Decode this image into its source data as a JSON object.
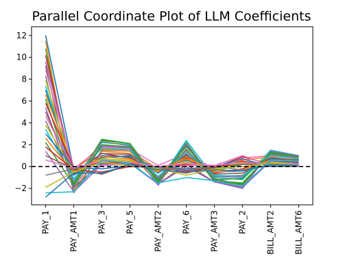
{
  "chart_data": {
    "type": "line",
    "title": "Parallel Coordinate Plot of LLM Coefficients",
    "xlabel": "",
    "ylabel": "",
    "categories": [
      "PAY_1",
      "PAY_AMT1",
      "PAY_3",
      "PAY_5",
      "PAY_AMT2",
      "PAY_6",
      "PAY_AMT3",
      "PAY_2",
      "BILL_AMT2",
      "BILL_AMT6"
    ],
    "ylim": [
      -3.5,
      12.8
    ],
    "yticks": [
      -2,
      0,
      2,
      4,
      6,
      8,
      10,
      12
    ],
    "reference_line": {
      "y": 0,
      "style": "dashed",
      "color": "#000000"
    },
    "grid": false,
    "legend": "none",
    "series": [
      {
        "values": [
          12.0,
          -0.3,
          0.8,
          1.0,
          -0.2,
          0.6,
          -0.4,
          0.2,
          0.5,
          0.3
        ]
      },
      {
        "values": [
          11.5,
          -2.2,
          1.4,
          1.2,
          -1.5,
          1.4,
          -1.2,
          -1.8,
          1.4,
          0.9
        ]
      },
      {
        "values": [
          10.8,
          -1.8,
          2.4,
          2.1,
          -1.4,
          2.2,
          -1.3,
          -1.5,
          1.2,
          1.0
        ]
      },
      {
        "values": [
          10.2,
          -0.6,
          1.2,
          0.8,
          -0.4,
          0.8,
          -0.6,
          -0.2,
          0.8,
          0.5
        ]
      },
      {
        "values": [
          9.6,
          -0.4,
          2.0,
          1.8,
          -1.0,
          1.8,
          -0.9,
          -1.0,
          1.1,
          0.8
        ]
      },
      {
        "values": [
          9.2,
          -1.9,
          0.3,
          0.4,
          -1.6,
          0.2,
          -1.4,
          -1.9,
          0.6,
          0.4
        ]
      },
      {
        "values": [
          8.8,
          -0.2,
          1.8,
          1.6,
          0.1,
          1.2,
          -0.2,
          0.8,
          1.0,
          0.7
        ]
      },
      {
        "values": [
          8.3,
          -2.4,
          1.5,
          1.4,
          -1.2,
          2.0,
          -1.1,
          -1.7,
          1.3,
          1.0
        ]
      },
      {
        "values": [
          7.9,
          -0.5,
          0.6,
          0.5,
          -0.3,
          0.4,
          -0.3,
          0.4,
          0.3,
          0.2
        ]
      },
      {
        "values": [
          7.4,
          -1.2,
          2.2,
          2.0,
          -1.5,
          2.4,
          -1.0,
          -1.2,
          1.5,
          1.0
        ]
      },
      {
        "values": [
          7.0,
          -0.8,
          1.0,
          0.9,
          -0.6,
          1.0,
          -0.5,
          -0.4,
          0.7,
          0.6
        ]
      },
      {
        "values": [
          6.6,
          -0.3,
          1.6,
          1.4,
          -0.2,
          0.7,
          -0.2,
          0.6,
          0.9,
          0.5
        ]
      },
      {
        "values": [
          6.2,
          -1.6,
          2.5,
          2.1,
          -1.3,
          1.6,
          -1.2,
          -1.1,
          1.2,
          0.9
        ]
      },
      {
        "values": [
          5.8,
          -0.1,
          0.4,
          0.3,
          -0.1,
          0.2,
          -0.1,
          0.9,
          0.2,
          0.1
        ]
      },
      {
        "values": [
          5.4,
          -2.0,
          1.9,
          1.7,
          -1.7,
          2.1,
          -1.4,
          -2.0,
          1.4,
          1.0
        ]
      },
      {
        "values": [
          5.0,
          -0.7,
          1.2,
          1.1,
          -0.5,
          1.1,
          -0.7,
          -0.6,
          0.8,
          0.6
        ]
      },
      {
        "values": [
          4.6,
          -0.2,
          0.1,
          0.2,
          -0.2,
          0.1,
          0.1,
          1.0,
          0.1,
          0.1
        ]
      },
      {
        "values": [
          4.2,
          -1.4,
          2.3,
          1.9,
          -1.1,
          1.5,
          -0.9,
          -0.8,
          1.1,
          0.8
        ]
      },
      {
        "values": [
          3.8,
          -0.4,
          0.7,
          0.6,
          -0.4,
          0.5,
          -0.4,
          0.3,
          0.4,
          0.3
        ]
      },
      {
        "values": [
          3.4,
          -1.1,
          1.7,
          1.5,
          -0.9,
          1.3,
          -0.8,
          -0.9,
          1.0,
          0.7
        ]
      },
      {
        "values": [
          3.0,
          -0.1,
          -0.2,
          0.1,
          0.0,
          -0.2,
          0.0,
          0.7,
          0.0,
          0.0
        ]
      },
      {
        "values": [
          2.6,
          -0.6,
          0.9,
          0.7,
          -0.5,
          0.9,
          -0.5,
          -0.3,
          0.6,
          0.5
        ]
      },
      {
        "values": [
          2.2,
          -1.7,
          2.0,
          1.8,
          -1.4,
          1.9,
          -1.3,
          -1.6,
          1.3,
          0.9
        ]
      },
      {
        "values": [
          1.8,
          -0.3,
          -0.5,
          0.0,
          -0.1,
          -0.4,
          -0.1,
          0.5,
          0.1,
          0.1
        ]
      },
      {
        "values": [
          1.4,
          -2.3,
          0.2,
          0.3,
          -1.6,
          0.0,
          -1.4,
          -1.9,
          0.5,
          0.3
        ]
      },
      {
        "values": [
          1.0,
          -0.2,
          -0.7,
          0.2,
          -0.2,
          -0.6,
          0.0,
          0.2,
          0.2,
          0.1
        ]
      },
      {
        "values": [
          0.6,
          -0.1,
          0.5,
          0.4,
          0.0,
          0.3,
          0.1,
          0.4,
          0.2,
          0.2
        ]
      },
      {
        "values": [
          -0.8,
          -0.2,
          0.3,
          0.2,
          -0.1,
          -0.3,
          0.0,
          -0.3,
          0.1,
          0.0
        ]
      },
      {
        "values": [
          -1.9,
          -0.5,
          0.4,
          0.1,
          -0.2,
          -0.8,
          -0.2,
          0.0,
          0.3,
          0.1
        ]
      },
      {
        "values": [
          -2.4,
          -2.3,
          0.6,
          0.3,
          -1.5,
          -1.0,
          -1.3,
          -1.8,
          0.6,
          0.5
        ]
      },
      {
        "values": [
          -2.8,
          -0.6,
          -0.6,
          0.2,
          -0.3,
          -0.5,
          -0.3,
          -0.4,
          0.2,
          0.1
        ]
      }
    ]
  }
}
